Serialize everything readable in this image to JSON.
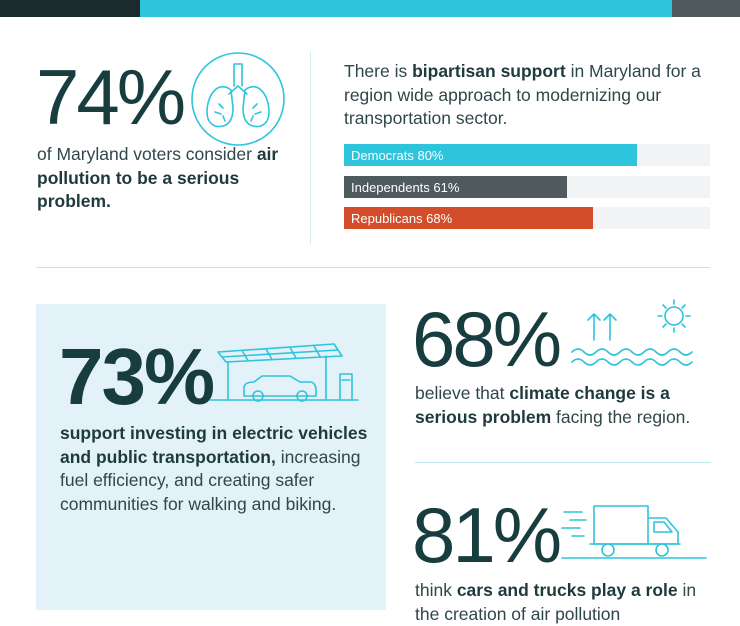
{
  "colors": {
    "democrats": "#2ec4dc",
    "independents": "#4e5a5e",
    "republicans": "#d44d2a",
    "panel": "#e3f2f8",
    "heading": "#173d3f"
  },
  "air_pollution": {
    "stat": "74%",
    "text_1": "of Maryland voters consider ",
    "text_bold": "air pollution to be a serious problem.",
    "icon": "lungs-icon"
  },
  "bipartisan": {
    "text_1": "There is ",
    "text_bold": "bipartisan support",
    "text_2": " in Maryland for a region wide approach to modernizing our transportation sector.",
    "bars": [
      {
        "label": "Democrats 80%",
        "value": 80,
        "color": "#2ec4dc"
      },
      {
        "label": "Independents 61%",
        "value": 61,
        "color": "#4e5a5e"
      },
      {
        "label": "Republicans 68%",
        "value": 68,
        "color": "#d44d2a"
      }
    ]
  },
  "investing": {
    "stat": "73%",
    "text_bold": "support investing in electric vehicles and public transportation,",
    "text_2": " increasing fuel efficiency, and creating safer communities for walking and biking.",
    "icon": "electric-car-charging-icon"
  },
  "climate": {
    "stat": "68%",
    "text_1": "believe that ",
    "text_bold": "climate change is a serious problem",
    "text_2": " facing the region.",
    "icon": "rising-sea-sun-icon"
  },
  "cars_trucks": {
    "stat": "81%",
    "text_1": "think ",
    "text_bold": "cars and trucks play a role",
    "text_2": " in the creation of air pollution",
    "icon": "truck-icon"
  }
}
